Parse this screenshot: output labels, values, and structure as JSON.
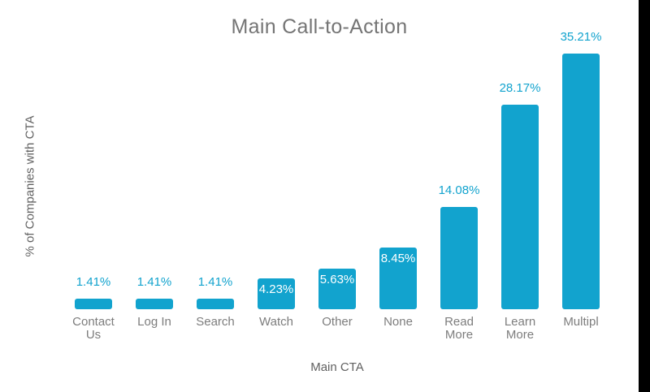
{
  "window": {
    "background": "#ffffff"
  },
  "chart_data": {
    "type": "bar",
    "title": "Main Call-to-Action",
    "xlabel": "Main CTA",
    "ylabel": "% of Companies with CTA",
    "categories": [
      "Contact Us",
      "Log In",
      "Search",
      "Watch",
      "Other",
      "None",
      "Read More",
      "Learn More",
      "Multipl"
    ],
    "tick_display": [
      "Contact\nUs",
      "Log In",
      "Search",
      "Watch",
      "Other",
      "None",
      "Read\nMore",
      "Learn\nMore",
      "Multipl"
    ],
    "values": [
      1.41,
      1.41,
      1.41,
      4.23,
      5.63,
      8.45,
      14.08,
      28.17,
      35.21
    ],
    "value_labels": [
      "1.41%",
      "1.41%",
      "1.41%",
      "4.23%",
      "5.63%",
      "8.45%",
      "14.08%",
      "28.17%",
      "35.21%"
    ],
    "value_label_placement": [
      "outside",
      "outside",
      "outside",
      "inside",
      "inside",
      "inside",
      "outside",
      "outside",
      "outside"
    ],
    "ylim": [
      0,
      35.21
    ],
    "grid": false,
    "legend": "none",
    "colors": {
      "bar": "#12a3ce",
      "value_label_outside": "#12a3ce",
      "value_label_inside": "#ffffff",
      "title": "#757575",
      "axis_label": "#616161",
      "tick_label": "#7d7d7d"
    }
  },
  "artifacts": {
    "right_edge_strip_color": "#000000"
  }
}
